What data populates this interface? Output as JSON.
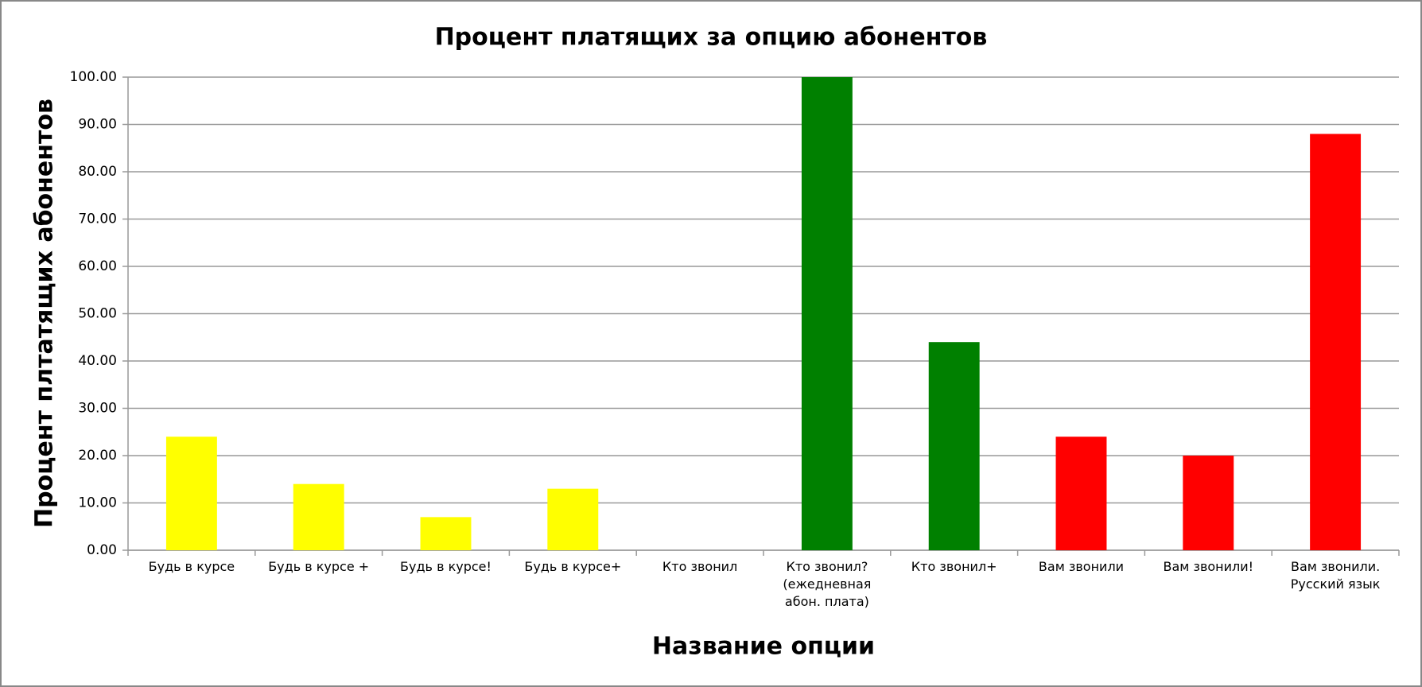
{
  "chart_data": {
    "type": "bar",
    "title": "Процент платящих за опцию абонентов",
    "x_label": "Название опции",
    "y_label": "Процент плтатящих абонентов",
    "categories": [
      "Будь в курсе",
      "Будь в курсе +",
      "Будь в курсе!",
      "Будь в курсе+",
      "Кто звонил",
      "Кто звонил? (ежедневная абон. плата)",
      "Кто звонил+",
      "Вам звонили",
      "Вам звонили!",
      "Вам звонили. Русский язык"
    ],
    "values": [
      24,
      14,
      7,
      13,
      0,
      100,
      44,
      24,
      20,
      88
    ],
    "colors": [
      "#ffff00",
      "#ffff00",
      "#ffff00",
      "#ffff00",
      "#008000",
      "#008000",
      "#008000",
      "#ff0000",
      "#ff0000",
      "#ff0000"
    ],
    "ylim": [
      0,
      100
    ],
    "yticks": [
      {
        "value": 0,
        "label": "0.00"
      },
      {
        "value": 10,
        "label": "10.00"
      },
      {
        "value": 20,
        "label": "20.00"
      },
      {
        "value": 30,
        "label": "30.00"
      },
      {
        "value": 40,
        "label": "40.00"
      },
      {
        "value": 50,
        "label": "50.00"
      },
      {
        "value": 60,
        "label": "60.00"
      },
      {
        "value": 70,
        "label": "70.00"
      },
      {
        "value": 80,
        "label": "80.00"
      },
      {
        "value": 90,
        "label": "90.00"
      },
      {
        "value": 100,
        "label": "100.00"
      }
    ],
    "grid": true
  }
}
